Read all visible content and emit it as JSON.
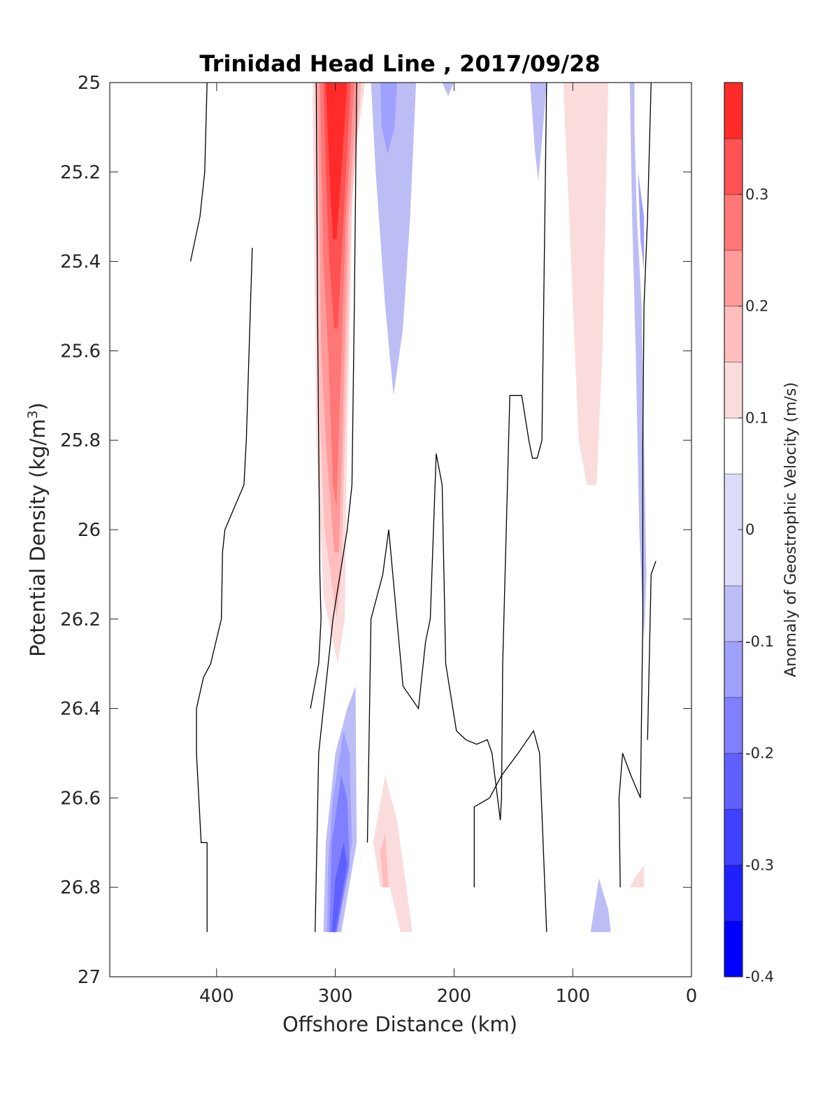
{
  "chart_data": {
    "type": "contour",
    "title": "Trinidad Head Line , 2017/09/28",
    "xlabel": "Offshore Distance (km)",
    "ylabel_main": "Potential Density (kg/m",
    "ylabel_sup": "3",
    "ylabel_close": ")",
    "colorbar_label": "Anomaly of Geostrophic Velocity (m/s)",
    "xlim": [
      490,
      0
    ],
    "ylim": [
      25,
      27
    ],
    "x_ticks": [
      {
        "value": 400,
        "label": "400"
      },
      {
        "value": 300,
        "label": "300"
      },
      {
        "value": 200,
        "label": "200"
      },
      {
        "value": 100,
        "label": "100"
      },
      {
        "value": 0,
        "label": "0"
      }
    ],
    "y_ticks": [
      {
        "value": 25,
        "label": "25"
      },
      {
        "value": 25.2,
        "label": "25.2"
      },
      {
        "value": 25.4,
        "label": "25.4"
      },
      {
        "value": 25.6,
        "label": "25.6"
      },
      {
        "value": 25.8,
        "label": "25.8"
      },
      {
        "value": 26,
        "label": "26"
      },
      {
        "value": 26.2,
        "label": "26.2"
      },
      {
        "value": 26.4,
        "label": "26.4"
      },
      {
        "value": 26.6,
        "label": "26.6"
      },
      {
        "value": 26.8,
        "label": "26.8"
      },
      {
        "value": 27,
        "label": "27"
      }
    ],
    "colorbar": {
      "range": [
        -0.4,
        0.4
      ],
      "levels": [
        -0.4,
        -0.35,
        -0.3,
        -0.25,
        -0.2,
        -0.15,
        -0.1,
        -0.05,
        0.05,
        0.1,
        0.15,
        0.2,
        0.25,
        0.3,
        0.35,
        0.4
      ],
      "colors": [
        "#0000ff",
        "#2020ff",
        "#4040ff",
        "#6060ff",
        "#8080ff",
        "#a0a0ff",
        "#bdbdf6",
        "#dcdcfa",
        "#ffffff",
        "#fbdcdc",
        "#ffbdbd",
        "#ff9b9b",
        "#ff7777",
        "#ff5252",
        "#ff2a2a",
        "#ff0000"
      ],
      "ticks": [
        {
          "value": 0.3,
          "label": "0.3"
        },
        {
          "value": 0.2,
          "label": "0.2"
        },
        {
          "value": 0.1,
          "label": "0.1"
        },
        {
          "value": 0,
          "label": "0"
        },
        {
          "value": -0.1,
          "label": "-0.1"
        },
        {
          "value": -0.2,
          "label": "-0.2"
        },
        {
          "value": -0.3,
          "label": "-0.3"
        },
        {
          "value": -0.4,
          "label": "-0.4"
        }
      ]
    },
    "filled_regions": [
      {
        "level": 0.1,
        "points": [
          [
            320,
            25
          ],
          [
            300,
            25
          ],
          [
            275,
            25
          ],
          [
            285,
            25.2
          ],
          [
            290,
            25.8
          ],
          [
            292,
            26.2
          ],
          [
            298,
            26.3
          ],
          [
            310,
            26.15
          ],
          [
            316,
            25.8
          ],
          [
            318,
            25.3
          ],
          [
            319,
            25
          ]
        ]
      },
      {
        "level": 0.15,
        "points": [
          [
            318,
            25
          ],
          [
            300,
            25
          ],
          [
            278,
            25
          ],
          [
            287,
            25.3
          ],
          [
            292,
            25.8
          ],
          [
            295,
            26.1
          ],
          [
            299,
            26.2
          ],
          [
            309,
            26.0
          ],
          [
            314,
            25.7
          ],
          [
            316,
            25.3
          ],
          [
            317,
            25
          ]
        ]
      },
      {
        "level": 0.2,
        "points": [
          [
            316,
            25
          ],
          [
            300,
            25
          ],
          [
            281,
            25
          ],
          [
            289,
            25.3
          ],
          [
            294,
            25.8
          ],
          [
            297,
            26.05
          ],
          [
            301,
            26.05
          ],
          [
            308,
            25.8
          ],
          [
            312,
            25.6
          ],
          [
            314,
            25.2
          ],
          [
            315,
            25
          ]
        ]
      },
      {
        "level": 0.25,
        "points": [
          [
            314,
            25
          ],
          [
            300,
            25
          ],
          [
            284,
            25
          ],
          [
            291,
            25.3
          ],
          [
            296,
            25.7
          ],
          [
            299,
            25.95
          ],
          [
            302,
            25.9
          ],
          [
            306,
            25.6
          ],
          [
            310,
            25.4
          ],
          [
            312,
            25.15
          ],
          [
            313,
            25
          ]
        ]
      },
      {
        "level": 0.3,
        "points": [
          [
            311,
            25
          ],
          [
            300,
            25
          ],
          [
            287,
            25
          ],
          [
            293,
            25.3
          ],
          [
            298,
            25.55
          ],
          [
            301,
            25.55
          ],
          [
            305,
            25.4
          ],
          [
            308,
            25.2
          ],
          [
            310,
            25
          ]
        ]
      },
      {
        "level": 0.35,
        "points": [
          [
            309,
            25
          ],
          [
            300,
            25
          ],
          [
            290,
            25
          ],
          [
            295,
            25.2
          ],
          [
            299,
            25.35
          ],
          [
            302,
            25.35
          ],
          [
            305,
            25.2
          ],
          [
            308,
            25
          ]
        ]
      },
      {
        "level": 0.1,
        "points": [
          [
            108,
            25
          ],
          [
            70,
            25
          ],
          [
            75,
            25.6
          ],
          [
            80,
            25.9
          ],
          [
            88,
            25.9
          ],
          [
            95,
            25.8
          ],
          [
            103,
            25.3
          ]
        ]
      },
      {
        "level": -0.1,
        "points": [
          [
            270,
            25
          ],
          [
            232,
            25
          ],
          [
            237,
            25.3
          ],
          [
            243,
            25.55
          ],
          [
            251,
            25.7
          ],
          [
            258,
            25.5
          ],
          [
            266,
            25.2
          ]
        ]
      },
      {
        "level": -0.15,
        "points": [
          [
            262,
            25
          ],
          [
            248,
            25
          ],
          [
            250,
            25.1
          ],
          [
            256,
            25.16
          ],
          [
            261,
            25.1
          ]
        ]
      },
      {
        "level": -0.1,
        "points": [
          [
            122,
            25
          ],
          [
            136,
            25
          ],
          [
            132,
            25.15
          ],
          [
            129,
            25.22
          ],
          [
            125,
            25.1
          ]
        ]
      },
      {
        "level": -0.1,
        "points": [
          [
            210,
            25
          ],
          [
            200,
            25
          ],
          [
            205,
            25.03
          ]
        ]
      },
      {
        "level": -0.1,
        "points": [
          [
            52,
            25
          ],
          [
            48,
            25
          ],
          [
            48,
            25.1
          ],
          [
            46,
            25.3
          ],
          [
            42,
            25.5
          ],
          [
            40,
            25.8
          ],
          [
            38,
            26.1
          ],
          [
            40,
            26.25
          ],
          [
            44,
            26.0
          ],
          [
            47,
            25.6
          ],
          [
            50,
            25.3
          ]
        ]
      },
      {
        "level": -0.15,
        "points": [
          [
            45,
            25.2
          ],
          [
            40,
            25.3
          ],
          [
            40,
            25.42
          ],
          [
            43,
            25.35
          ]
        ]
      },
      {
        "level": -0.1,
        "points": [
          [
            310,
            26.9
          ],
          [
            295,
            26.9
          ],
          [
            282,
            26.7
          ],
          [
            283,
            26.35
          ],
          [
            290,
            26.4
          ],
          [
            300,
            26.5
          ],
          [
            308,
            26.7
          ]
        ]
      },
      {
        "level": -0.15,
        "points": [
          [
            307,
            26.9
          ],
          [
            298,
            26.9
          ],
          [
            286,
            26.7
          ],
          [
            288,
            26.5
          ],
          [
            293,
            26.45
          ],
          [
            302,
            26.6
          ],
          [
            306,
            26.75
          ]
        ]
      },
      {
        "level": -0.2,
        "points": [
          [
            305,
            26.9
          ],
          [
            299,
            26.9
          ],
          [
            288,
            26.75
          ],
          [
            290,
            26.6
          ],
          [
            295,
            26.55
          ],
          [
            303,
            26.7
          ]
        ]
      },
      {
        "level": -0.25,
        "points": [
          [
            303,
            26.9
          ],
          [
            300,
            26.9
          ],
          [
            290,
            26.75
          ],
          [
            293,
            26.7
          ],
          [
            300,
            26.78
          ]
        ]
      },
      {
        "level": 0.1,
        "points": [
          [
            268,
            26.7
          ],
          [
            258,
            26.55
          ],
          [
            248,
            26.65
          ],
          [
            235,
            26.9
          ],
          [
            245,
            26.9
          ],
          [
            254,
            26.8
          ],
          [
            262,
            26.8
          ]
        ]
      },
      {
        "level": 0.15,
        "points": [
          [
            262,
            26.72
          ],
          [
            258,
            26.68
          ],
          [
            255,
            26.8
          ],
          [
            260,
            26.8
          ]
        ]
      },
      {
        "level": -0.1,
        "points": [
          [
            85,
            26.9
          ],
          [
            68,
            26.9
          ],
          [
            70,
            26.85
          ],
          [
            78,
            26.78
          ]
        ]
      },
      {
        "level": 0.1,
        "points": [
          [
            52,
            26.8
          ],
          [
            40,
            26.8
          ],
          [
            40,
            26.75
          ],
          [
            48,
            26.78
          ]
        ]
      }
    ],
    "contour_lines": [
      [
        [
          422,
          25.4
        ],
        [
          414,
          25.3
        ],
        [
          410,
          25.2
        ],
        [
          408,
          25.0
        ]
      ],
      [
        [
          370,
          25.37
        ],
        [
          375,
          25.8
        ],
        [
          377,
          25.9
        ],
        [
          385,
          25.95
        ],
        [
          393,
          26.0
        ],
        [
          395,
          26.05
        ],
        [
          396,
          26.2
        ],
        [
          405,
          26.3
        ],
        [
          411,
          26.33
        ],
        [
          417,
          26.4
        ],
        [
          417,
          26.5
        ],
        [
          413,
          26.7
        ],
        [
          408,
          26.7
        ],
        [
          408,
          26.9
        ]
      ],
      [
        [
          321,
          26.4
        ],
        [
          314,
          26.3
        ],
        [
          312,
          26.2
        ],
        [
          313,
          26.1
        ],
        [
          315,
          25.5
        ],
        [
          316,
          25.0
        ]
      ],
      [
        [
          317,
          26.9
        ],
        [
          314,
          26.5
        ],
        [
          302,
          26.2
        ],
        [
          296,
          26.1
        ],
        [
          290,
          26.0
        ],
        [
          286,
          25.9
        ],
        [
          284,
          25.5
        ],
        [
          282,
          25.0
        ]
      ],
      [
        [
          273,
          26.7
        ],
        [
          270,
          26.2
        ],
        [
          260,
          26.1
        ],
        [
          255,
          26.0
        ],
        [
          243,
          26.35
        ],
        [
          230,
          26.4
        ],
        [
          224,
          26.25
        ],
        [
          220,
          26.2
        ],
        [
          215,
          25.83
        ],
        [
          210,
          25.9
        ],
        [
          207,
          26.3
        ],
        [
          198,
          26.45
        ],
        [
          190,
          26.47
        ],
        [
          181,
          26.48
        ],
        [
          172,
          26.47
        ],
        [
          168,
          26.5
        ],
        [
          161,
          26.65
        ],
        [
          160,
          26.6
        ],
        [
          159,
          26.3
        ],
        [
          153,
          25.7
        ],
        [
          143,
          25.7
        ],
        [
          137,
          25.8
        ],
        [
          134,
          25.84
        ],
        [
          130,
          25.84
        ],
        [
          126,
          25.8
        ],
        [
          122,
          25.0
        ]
      ],
      [
        [
          122,
          26.9
        ],
        [
          125,
          26.7
        ],
        [
          128,
          26.5
        ],
        [
          133,
          26.45
        ],
        [
          146,
          26.5
        ],
        [
          160,
          26.55
        ],
        [
          170,
          26.6
        ],
        [
          183,
          26.62
        ],
        [
          183,
          26.8
        ]
      ],
      [
        [
          60,
          26.8
        ],
        [
          61,
          26.6
        ],
        [
          58,
          26.5
        ],
        [
          51,
          26.55
        ],
        [
          43,
          26.6
        ],
        [
          41,
          26.2
        ],
        [
          41,
          25.8
        ],
        [
          40,
          25.5
        ],
        [
          37,
          25.3
        ],
        [
          34,
          25.0
        ]
      ],
      [
        [
          37,
          26.47
        ],
        [
          34,
          26.1
        ],
        [
          30,
          26.07
        ]
      ]
    ]
  }
}
